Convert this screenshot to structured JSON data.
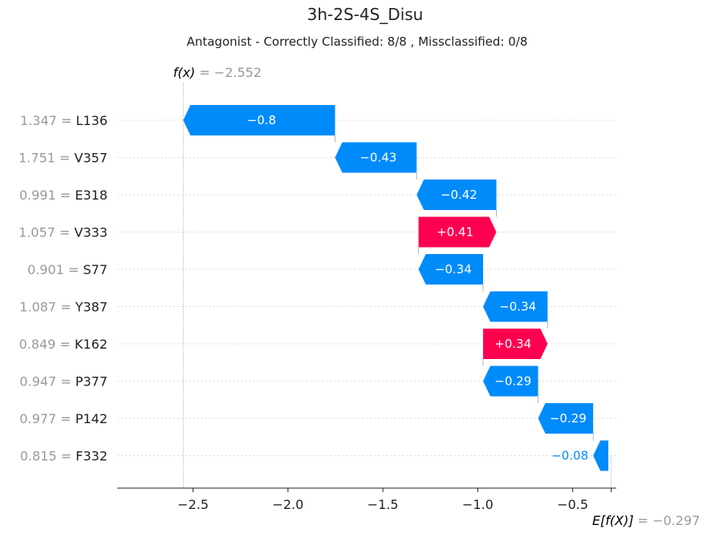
{
  "chart_data": {
    "type": "waterfall",
    "title": "3h-2S-4S_Disu",
    "subtitle": "Antagonist - Correctly Classified: 8/8 , Missclassified: 0/8",
    "fx_label": "f(x)",
    "fx_value": -2.552,
    "fx_value_text": "= −2.552",
    "ex_label": "E[f(X)]",
    "ex_value": -0.297,
    "ex_value_text": "= −0.297",
    "features": [
      {
        "name": "L136",
        "value": "1.347",
        "contribution": -0.8,
        "label": "−0.8"
      },
      {
        "name": "V357",
        "value": "1.751",
        "contribution": -0.43,
        "label": "−0.43"
      },
      {
        "name": "E318",
        "value": "0.991",
        "contribution": -0.42,
        "label": "−0.42"
      },
      {
        "name": "V333",
        "value": "1.057",
        "contribution": 0.41,
        "label": "+0.41"
      },
      {
        "name": "S77",
        "value": "0.901",
        "contribution": -0.34,
        "label": "−0.34"
      },
      {
        "name": "Y387",
        "value": "1.087",
        "contribution": -0.34,
        "label": "−0.34"
      },
      {
        "name": "K162",
        "value": "0.849",
        "contribution": 0.34,
        "label": "+0.34"
      },
      {
        "name": "P377",
        "value": "0.947",
        "contribution": -0.29,
        "label": "−0.29"
      },
      {
        "name": "P142",
        "value": "0.977",
        "contribution": -0.29,
        "label": "−0.29"
      },
      {
        "name": "F332",
        "value": "0.815",
        "contribution": -0.08,
        "label": "−0.08"
      }
    ],
    "x_ticks": [
      -2.5,
      -2.0,
      -1.5,
      -1.0,
      -0.5
    ],
    "x_tick_labels": [
      "−2.5",
      "−2.0",
      "−1.5",
      "−1.0",
      "−0.5"
    ],
    "xlim": [
      -2.9,
      -0.27
    ],
    "colors": {
      "negative": "#008bfb",
      "positive": "#ff0051",
      "text_muted": "#999999"
    }
  }
}
